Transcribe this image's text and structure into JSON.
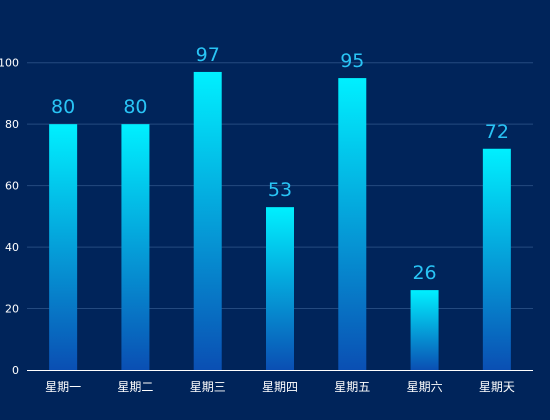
{
  "chart_data": {
    "type": "bar",
    "categories": [
      "星期一",
      "星期二",
      "星期三",
      "星期四",
      "星期五",
      "星期六",
      "星期天"
    ],
    "values": [
      80,
      80,
      97,
      53,
      95,
      26,
      72
    ],
    "y_ticks": [
      "0",
      "20",
      "40",
      "60",
      "80",
      "100"
    ],
    "ylim": [
      0,
      110
    ],
    "grid": true,
    "data_labels": true,
    "colors": {
      "background": "#00245a",
      "bar_top": "#00f0ff",
      "bar_bottom": "#0a4fb3",
      "data_label": "#29c4f5",
      "grid": "#244a7f",
      "axis_text": "#ffffff"
    }
  }
}
